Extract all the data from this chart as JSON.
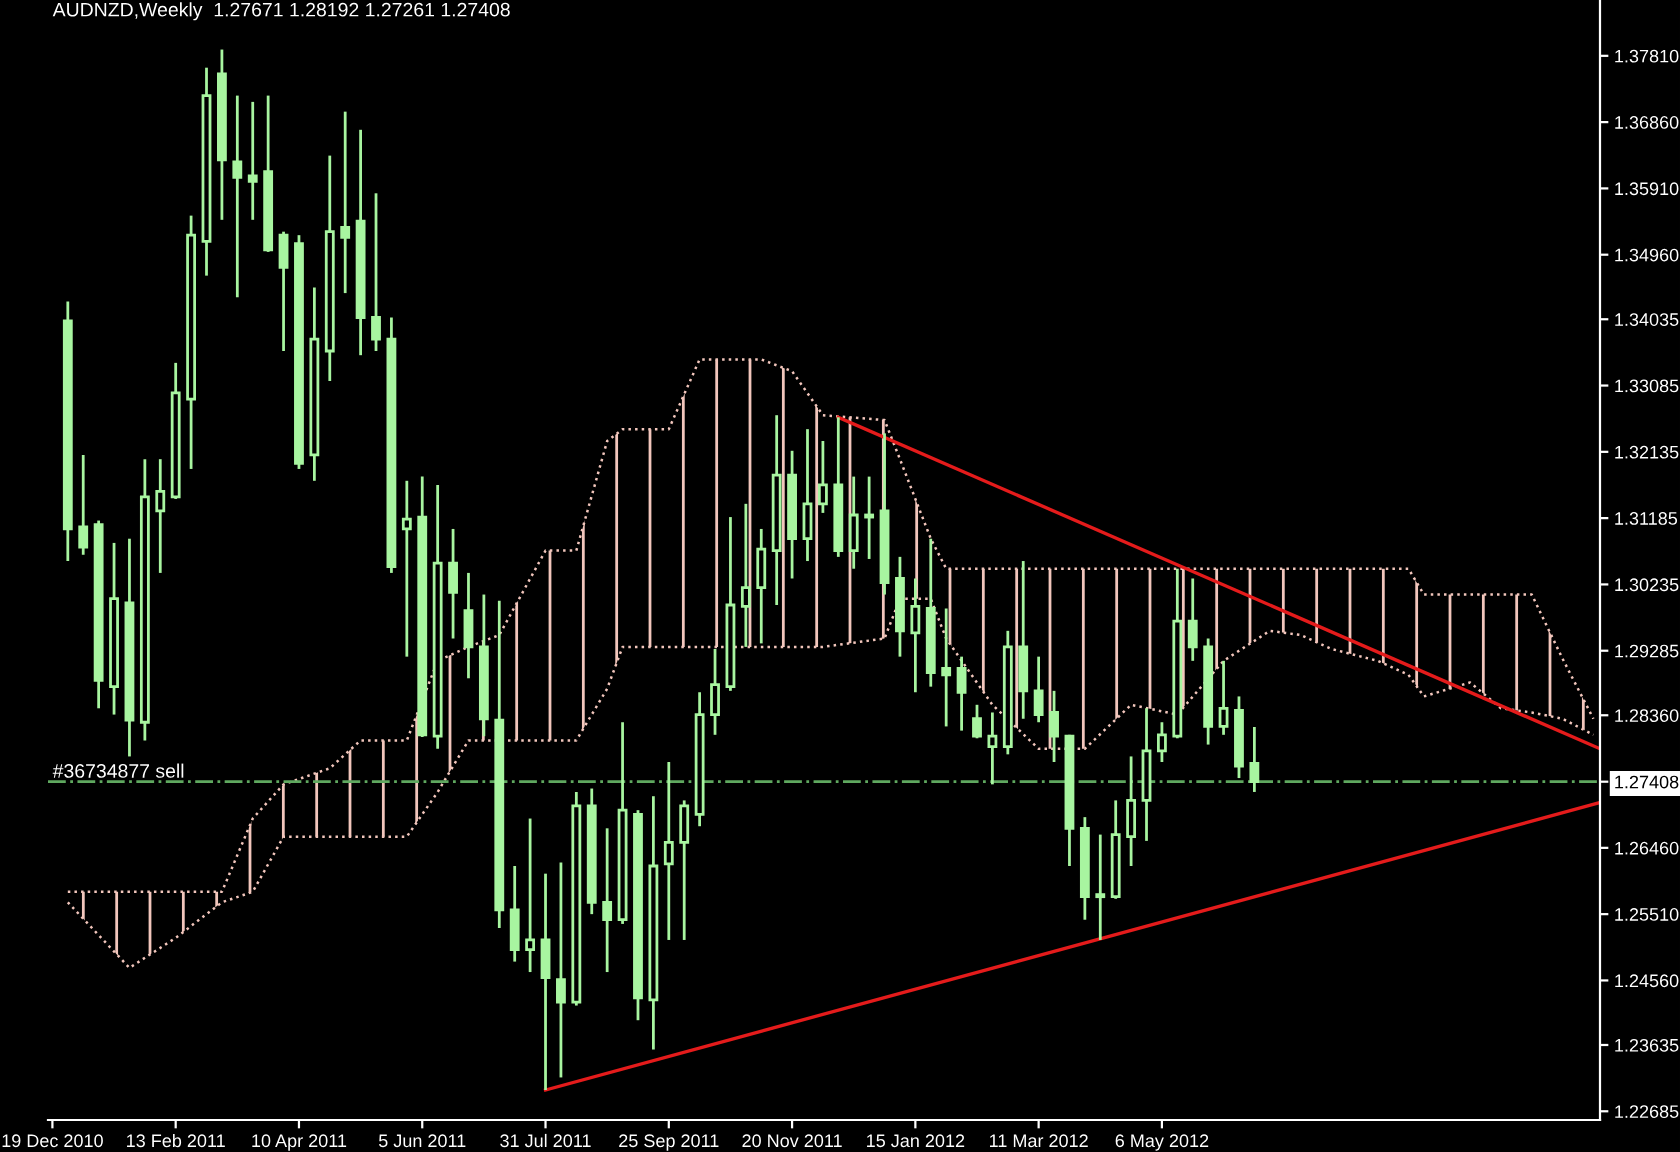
{
  "chart_data": {
    "type": "candlestick",
    "title": "AUDNZD,Weekly  1.27671 1.28192 1.27261 1.27408",
    "xlim": [
      "2010-12-17",
      "2012-11-21"
    ],
    "xticks": [
      {
        "value": "2010-12-19",
        "label": "19 Dec 2010"
      },
      {
        "value": "2011-02-13",
        "label": "13 Feb 2011"
      },
      {
        "value": "2011-04-10",
        "label": "10 Apr 2011"
      },
      {
        "value": "2011-06-05",
        "label": "5 Jun 2011"
      },
      {
        "value": "2011-07-31",
        "label": "31 Jul 2011"
      },
      {
        "value": "2011-09-25",
        "label": "25 Sep 2011"
      },
      {
        "value": "2011-11-20",
        "label": "20 Nov 2011"
      },
      {
        "value": "2012-01-15",
        "label": "15 Jan 2012"
      },
      {
        "value": "2012-03-11",
        "label": "11 Mar 2012"
      },
      {
        "value": "2012-05-06",
        "label": "6 May 2012"
      }
    ],
    "ylim": [
      1.2256,
      1.3861
    ],
    "yticks": [
      {
        "value": 1.3781,
        "label": "1.37810"
      },
      {
        "value": 1.3686,
        "label": "1.36860"
      },
      {
        "value": 1.3591,
        "label": "1.35910"
      },
      {
        "value": 1.3496,
        "label": "1.34960"
      },
      1.34035,
      1.33085,
      1.32135,
      1.31185,
      1.30235,
      1.29285,
      {
        "value": 1.2836,
        "label": "1.28360"
      },
      1.27408,
      {
        "value": 1.2646,
        "label": "1.26460"
      },
      {
        "value": 1.2551,
        "label": "1.25510"
      },
      {
        "value": 1.2456,
        "label": "1.24560"
      },
      1.23635,
      1.22685
    ],
    "grid": false,
    "legend": false,
    "ref_lines": [
      {
        "axis": "y",
        "value": 1.27408,
        "label": "#36734877 sell",
        "color": "#5fa85f",
        "line_style": "dashdot"
      }
    ],
    "series": [
      {
        "type": "line",
        "color": "#f2c6bc",
        "line_style": "dotted",
        "x": [
          "2010-12-26",
          "2011-01-23",
          "2011-02-13",
          "2011-03-06",
          "2011-03-20",
          "2011-04-03",
          "2011-04-24",
          "2011-05-08",
          "2011-05-29",
          "2011-06-12",
          "2011-06-26",
          "2011-07-14",
          "2011-07-31",
          "2011-08-14",
          "2011-08-28",
          "2011-09-04",
          "2011-09-25",
          "2011-10-09",
          "2011-11-06",
          "2011-11-20",
          "2011-12-04",
          "2012-01-01",
          "2012-01-08",
          "2012-01-22",
          "2012-01-29",
          "2012-02-19",
          "2012-03-11",
          "2012-04-01",
          "2012-04-22",
          "2012-05-13",
          "2012-06-03",
          "2012-06-24",
          "2012-07-08",
          "2012-07-22",
          "2012-08-12",
          "2012-08-26",
          "2012-09-02",
          "2012-09-23",
          "2012-10-07",
          "2012-10-21",
          "2012-11-04",
          "2012-11-18"
        ],
        "values": [
          1.2568,
          1.2474,
          1.2517,
          1.2568,
          1.2583,
          1.2662,
          1.2662,
          1.2662,
          1.2662,
          1.2726,
          1.28,
          1.28,
          1.28,
          1.28,
          1.2874,
          1.2934,
          1.2934,
          1.2934,
          1.2934,
          1.2934,
          1.2934,
          1.2946,
          1.3003,
          1.3003,
          1.2946,
          1.2851,
          1.2788,
          1.2788,
          1.2851,
          1.2837,
          1.2914,
          1.2957,
          1.2951,
          1.2931,
          1.2914,
          1.2894,
          1.2863,
          1.2883,
          1.2846,
          1.284,
          1.2831,
          1.2808
        ]
      },
      {
        "type": "area",
        "color": "#f2c6bc",
        "line_style": "dotted",
        "x": [
          "2010-12-26",
          "2011-01-23",
          "2011-02-13",
          "2011-03-06",
          "2011-03-20",
          "2011-04-03",
          "2011-04-24",
          "2011-05-08",
          "2011-05-29",
          "2011-06-12",
          "2011-06-26",
          "2011-07-10",
          "2011-07-31",
          "2011-08-14",
          "2011-08-28",
          "2011-09-04",
          "2011-09-25",
          "2011-10-09",
          "2011-11-06",
          "2011-11-20",
          "2011-12-04",
          "2012-01-01",
          "2012-01-08",
          "2012-01-22",
          "2012-01-29",
          "2012-02-19",
          "2012-03-11",
          "2012-04-01",
          "2012-04-22",
          "2012-05-13",
          "2012-06-03",
          "2012-06-24",
          "2012-07-08",
          "2012-07-22",
          "2012-08-12",
          "2012-08-26",
          "2012-09-02",
          "2012-09-23",
          "2012-10-07",
          "2012-10-21",
          "2012-11-04",
          "2012-11-18"
        ],
        "values": [
          1.2583,
          1.2583,
          1.2583,
          1.2583,
          1.2688,
          1.2737,
          1.276,
          1.28,
          1.28,
          1.2914,
          1.2934,
          1.2951,
          1.3072,
          1.3072,
          1.3229,
          1.3246,
          1.3246,
          1.3346,
          1.3346,
          1.3329,
          1.3266,
          1.3259,
          1.3203,
          1.3089,
          1.3046,
          1.3046,
          1.3046,
          1.3046,
          1.3046,
          1.3046,
          1.3046,
          1.3046,
          1.3046,
          1.3046,
          1.3046,
          1.3046,
          1.3009,
          1.3009,
          1.3009,
          1.3009,
          1.2917,
          1.2831
        ]
      },
      {
        "type": "line",
        "color": "#e41b1b",
        "x": [
          "2011-12-11",
          "2012-11-21"
        ],
        "values": [
          1.3263,
          1.2788
        ]
      },
      {
        "type": "line",
        "color": "#e41b1b",
        "x": [
          "2011-07-31",
          "2012-11-21"
        ],
        "values": [
          1.2299,
          1.2711
        ]
      },
      {
        "color": "#a8f5a0",
        "x": [
          "2010-12-26",
          "2011-01-02",
          "2011-01-09",
          "2011-01-16",
          "2011-01-23",
          "2011-01-30",
          "2011-02-06",
          "2011-02-13",
          "2011-02-20",
          "2011-02-27",
          "2011-03-06",
          "2011-03-13",
          "2011-03-20",
          "2011-03-27",
          "2011-04-03",
          "2011-04-10",
          "2011-04-17",
          "2011-04-24",
          "2011-05-01",
          "2011-05-08",
          "2011-05-15",
          "2011-05-22",
          "2011-05-29",
          "2011-06-05",
          "2011-06-12",
          "2011-06-19",
          "2011-06-26",
          "2011-07-03",
          "2011-07-10",
          "2011-07-17",
          "2011-07-24",
          "2011-07-31",
          "2011-08-07",
          "2011-08-14",
          "2011-08-21",
          "2011-08-28",
          "2011-09-04",
          "2011-09-11",
          "2011-09-18",
          "2011-09-25",
          "2011-10-02",
          "2011-10-09",
          "2011-10-16",
          "2011-10-23",
          "2011-10-30",
          "2011-11-06",
          "2011-11-13",
          "2011-11-20",
          "2011-11-27",
          "2011-12-04",
          "2011-12-11",
          "2011-12-18",
          "2011-12-25",
          "2012-01-01",
          "2012-01-08",
          "2012-01-15",
          "2012-01-22",
          "2012-01-29",
          "2012-02-05",
          "2012-02-12",
          "2012-02-19",
          "2012-02-26",
          "2012-03-04",
          "2012-03-11",
          "2012-03-18",
          "2012-03-25",
          "2012-04-01",
          "2012-04-08",
          "2012-04-15",
          "2012-04-22",
          "2012-04-29",
          "2012-05-06",
          "2012-05-13",
          "2012-05-20",
          "2012-05-27",
          "2012-06-03",
          "2012-06-10",
          "2012-06-17"
        ],
        "ohlc": [
          [
            1.3401,
            1.3429,
            1.3057,
            1.3103
          ],
          [
            1.3106,
            1.3209,
            1.3066,
            1.3077
          ],
          [
            1.3109,
            1.3115,
            1.2846,
            1.2886
          ],
          [
            1.2877,
            1.3083,
            1.2837,
            1.3003
          ],
          [
            1.2997,
            1.3089,
            1.2777,
            1.2829
          ],
          [
            1.2826,
            1.3203,
            1.28,
            1.3149
          ],
          [
            1.3129,
            1.3203,
            1.304,
            1.3157
          ],
          [
            1.3149,
            1.3341,
            1.3146,
            1.3298
          ],
          [
            1.3289,
            1.3552,
            1.3189,
            1.3524
          ],
          [
            1.3515,
            1.3764,
            1.3466,
            1.3724
          ],
          [
            1.3755,
            1.379,
            1.3546,
            1.3632
          ],
          [
            1.3629,
            1.3724,
            1.3435,
            1.3607
          ],
          [
            1.3609,
            1.3715,
            1.3546,
            1.3601
          ],
          [
            1.3615,
            1.3724,
            1.35,
            1.3503
          ],
          [
            1.3524,
            1.3529,
            1.3358,
            1.3478
          ],
          [
            1.3512,
            1.3524,
            1.3189,
            1.3197
          ],
          [
            1.3209,
            1.3449,
            1.3172,
            1.3375
          ],
          [
            1.3358,
            1.3638,
            1.3315,
            1.3529
          ],
          [
            1.3535,
            1.3701,
            1.3441,
            1.3521
          ],
          [
            1.3544,
            1.3675,
            1.3352,
            1.3406
          ],
          [
            1.3406,
            1.3584,
            1.3358,
            1.3375
          ],
          [
            1.3375,
            1.3406,
            1.304,
            1.3049
          ],
          [
            1.3103,
            1.3172,
            1.292,
            1.3117
          ],
          [
            1.312,
            1.3178,
            1.2805,
            1.2808
          ],
          [
            1.2806,
            1.3166,
            1.2788,
            1.3054
          ],
          [
            1.3054,
            1.3103,
            1.2946,
            1.3012
          ],
          [
            1.2986,
            1.304,
            1.2889,
            1.2934
          ],
          [
            1.2934,
            1.3009,
            1.2806,
            1.2831
          ],
          [
            1.2829,
            1.3,
            1.2531,
            1.2557
          ],
          [
            1.2557,
            1.262,
            1.2483,
            1.25
          ],
          [
            1.25,
            1.2688,
            1.2468,
            1.2514
          ],
          [
            1.2514,
            1.2609,
            1.2299,
            1.246
          ],
          [
            1.2457,
            1.2625,
            1.2317,
            1.2425
          ],
          [
            1.2425,
            1.2726,
            1.242,
            1.2706
          ],
          [
            1.2706,
            1.2731,
            1.2551,
            1.2568
          ],
          [
            1.2568,
            1.2674,
            1.2468,
            1.2543
          ],
          [
            1.2543,
            1.2826,
            1.2537,
            1.27
          ],
          [
            1.2694,
            1.27,
            1.2399,
            1.2431
          ],
          [
            1.2428,
            1.272,
            1.2357,
            1.262
          ],
          [
            1.2623,
            1.2769,
            1.2514,
            1.2654
          ],
          [
            1.2654,
            1.2714,
            1.2514,
            1.2706
          ],
          [
            1.2694,
            1.2869,
            1.2677,
            1.2837
          ],
          [
            1.2837,
            1.2931,
            1.2808,
            1.288
          ],
          [
            1.2877,
            1.312,
            1.2871,
            1.2994
          ],
          [
            1.2992,
            1.3139,
            1.2934,
            1.3019
          ],
          [
            1.3019,
            1.3103,
            1.2939,
            1.3074
          ],
          [
            1.3072,
            1.3266,
            1.2994,
            1.318
          ],
          [
            1.318,
            1.3215,
            1.3032,
            1.3089
          ],
          [
            1.3089,
            1.3246,
            1.3057,
            1.3139
          ],
          [
            1.3139,
            1.3229,
            1.3126,
            1.3166
          ],
          [
            1.3166,
            1.3263,
            1.3063,
            1.3072
          ],
          [
            1.3072,
            1.3178,
            1.3046,
            1.3123
          ],
          [
            1.3123,
            1.3178,
            1.306,
            1.312
          ],
          [
            1.3129,
            1.324,
            1.3009,
            1.3026
          ],
          [
            1.3032,
            1.3063,
            1.292,
            1.2957
          ],
          [
            1.2954,
            1.3032,
            1.2869,
            1.2992
          ],
          [
            1.2989,
            1.3089,
            1.2877,
            1.2897
          ],
          [
            1.2903,
            1.2989,
            1.282,
            1.2894
          ],
          [
            1.2903,
            1.292,
            1.2814,
            1.2869
          ],
          [
            1.2831,
            1.2851,
            1.2803,
            1.2806
          ],
          [
            1.2791,
            1.284,
            1.2737,
            1.2806
          ],
          [
            1.2791,
            1.2957,
            1.278,
            1.2934
          ],
          [
            1.2934,
            1.3057,
            1.2831,
            1.2871
          ],
          [
            1.2871,
            1.292,
            1.2826,
            1.2837
          ],
          [
            1.284,
            1.2871,
            1.2769,
            1.2806
          ],
          [
            1.2806,
            1.2808,
            1.262,
            1.2674
          ],
          [
            1.2674,
            1.269,
            1.2543,
            1.2576
          ],
          [
            1.2579,
            1.2665,
            1.2514,
            1.2576
          ],
          [
            1.2576,
            1.2714,
            1.2573,
            1.2665
          ],
          [
            1.2662,
            1.2777,
            1.262,
            1.2714
          ],
          [
            1.2714,
            1.2846,
            1.2656,
            1.2785
          ],
          [
            1.2785,
            1.2826,
            1.2769,
            1.2808
          ],
          [
            1.2806,
            1.3046,
            1.2803,
            1.2971
          ],
          [
            1.2971,
            1.3032,
            1.2914,
            1.2934
          ],
          [
            1.2934,
            1.2946,
            1.2794,
            1.282
          ],
          [
            1.282,
            1.2914,
            1.2808,
            1.2846
          ],
          [
            1.2843,
            1.2863,
            1.2746,
            1.2763
          ],
          [
            1.27671,
            1.28192,
            1.27261,
            1.27408
          ]
        ]
      }
    ]
  }
}
